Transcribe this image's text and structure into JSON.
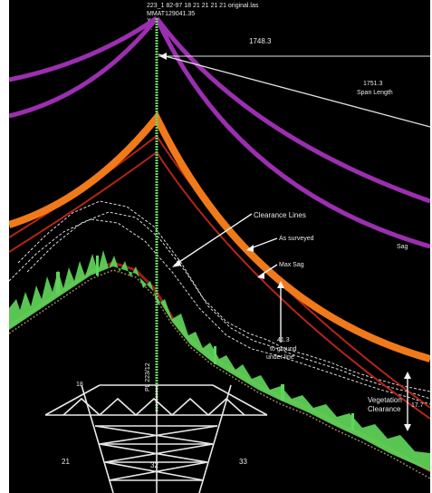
{
  "header": {
    "line1": "223_1 82-97 18 21 21 21 21 original.las",
    "line2": "MMAT129041.35",
    "line3": "X:",
    "line4": "Y:"
  },
  "measurements": {
    "span_value_top": "1748.3",
    "span_value_right": "1751.3",
    "span_length_label": "Span Length",
    "sag_label": "Sag",
    "clearance_lines_label": "Clearance Lines",
    "as_surveyed_label": "As surveyed",
    "max_sag_label": "Max Sag",
    "ground_value": "41.3",
    "ground_label_1": "to ground",
    "ground_label_2": "under line",
    "vegetation_label_1": "Vegetation",
    "vegetation_label_2": "Clearance",
    "vegetation_value": "17.7",
    "vertical_tag": "PL 223/12",
    "tower_left_dim": "21",
    "tower_center_dim": "32",
    "tower_right_dim": "33",
    "tower_crossarm_dim": "18"
  },
  "colors": {
    "background": "#000000",
    "upper_conductor": "#9b2fb0",
    "lower_conductor": "#f07a1a",
    "clearance_line": "#b52418",
    "vegetation": "#5fd65a",
    "tower": "#e8e8e8",
    "text": "#e9e9e9"
  }
}
